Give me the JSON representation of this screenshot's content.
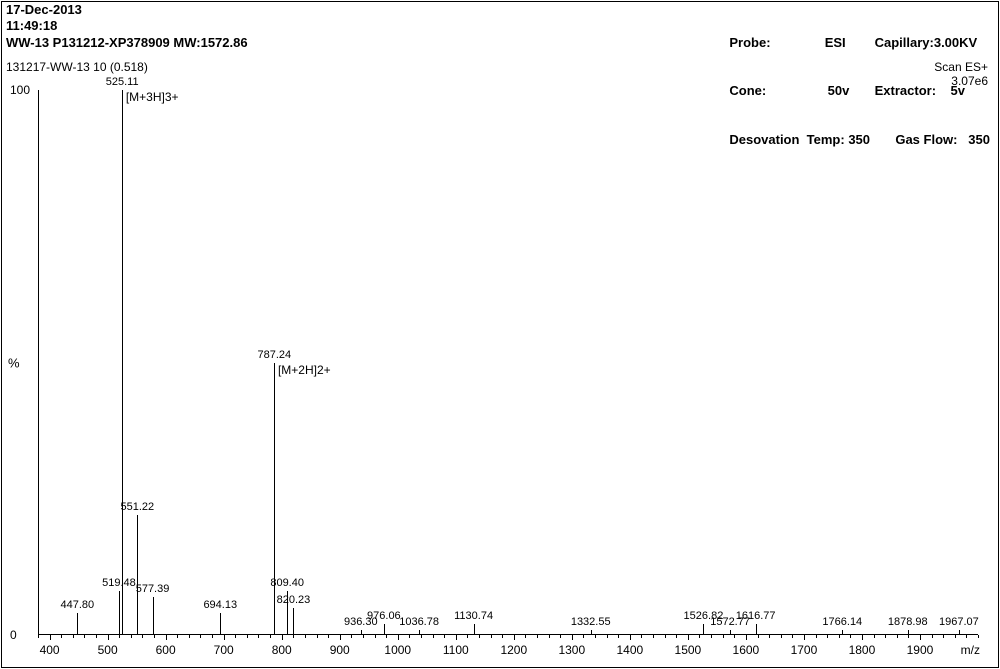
{
  "header": {
    "date": "17-Dec-2013",
    "time": "11:49:18",
    "sample": "WW-13  P131212-XP378909  MW:1572.86"
  },
  "params": {
    "probe_label": "Probe:",
    "probe_value": "ESI",
    "cone_label": "Cone:",
    "cone_value": "50v",
    "desolv_label": "Desovation  Temp:",
    "desolv_value": "350",
    "capillary_label": "Capillary:",
    "capillary_value": "3.00KV",
    "extractor_label": "Extractor:",
    "extractor_value": "5v",
    "gasflow_label": "Gas Flow:",
    "gasflow_value": "350"
  },
  "run": "131217-WW-13 10 (0.518)",
  "scan": {
    "mode": "Scan ES+",
    "intensity": "3.07e6"
  },
  "chart": {
    "type": "mass-spectrum-sticks",
    "background_color": "#ffffff",
    "line_color": "#000000",
    "text_color": "#000000",
    "y_axis_title": "%",
    "x_axis_title": "m/z",
    "axis_fontsize": 12,
    "label_fontsize": 11,
    "xlim": [
      380,
      2000
    ],
    "ylim": [
      0,
      100
    ],
    "x_ticks": [
      400,
      500,
      600,
      700,
      800,
      900,
      1000,
      1100,
      1200,
      1300,
      1400,
      1500,
      1600,
      1700,
      1800,
      1900
    ],
    "y_ticks": [
      0,
      100
    ],
    "peaks": [
      {
        "mz": 447.8,
        "pct": 4,
        "label": "447.80"
      },
      {
        "mz": 519.48,
        "pct": 8,
        "label": "519.48"
      },
      {
        "mz": 525.11,
        "pct": 100,
        "label": "525.11",
        "annot": "[M+3H]3+"
      },
      {
        "mz": 551.22,
        "pct": 22,
        "label": "551.22"
      },
      {
        "mz": 577.39,
        "pct": 7,
        "label": "577.39"
      },
      {
        "mz": 694.13,
        "pct": 4,
        "label": "694.13"
      },
      {
        "mz": 787.24,
        "pct": 50,
        "label": "787.24",
        "annot": "[M+2H]2+"
      },
      {
        "mz": 809.4,
        "pct": 8,
        "label": "809.40"
      },
      {
        "mz": 820.23,
        "pct": 5,
        "label": "820.23"
      },
      {
        "mz": 936.3,
        "pct": 1,
        "label": "936.30"
      },
      {
        "mz": 976.06,
        "pct": 2,
        "label": "976.06"
      },
      {
        "mz": 1036.78,
        "pct": 1,
        "label": "1036.78"
      },
      {
        "mz": 1130.74,
        "pct": 2,
        "label": "1130.74"
      },
      {
        "mz": 1332.55,
        "pct": 1,
        "label": "1332.55"
      },
      {
        "mz": 1526.82,
        "pct": 2,
        "label": "1526.82"
      },
      {
        "mz": 1572.77,
        "pct": 1,
        "label": "1572.77"
      },
      {
        "mz": 1616.77,
        "pct": 2,
        "label": "1616.77"
      },
      {
        "mz": 1766.14,
        "pct": 1,
        "label": "1766.14"
      },
      {
        "mz": 1878.98,
        "pct": 1,
        "label": "1878.98"
      },
      {
        "mz": 1967.07,
        "pct": 1,
        "label": "1967.07"
      }
    ]
  }
}
